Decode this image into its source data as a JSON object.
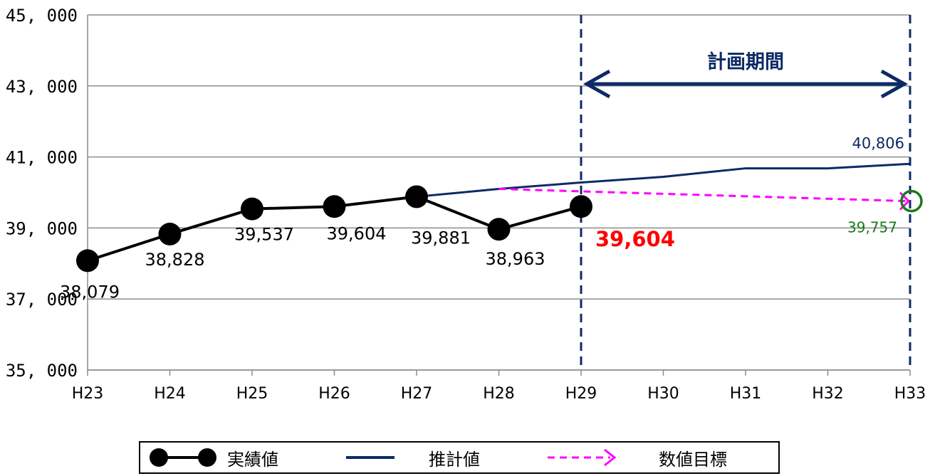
{
  "chart_data": {
    "type": "line",
    "categories": [
      "H23",
      "H24",
      "H25",
      "H26",
      "H27",
      "H28",
      "H29",
      "H30",
      "H31",
      "H32",
      "H33"
    ],
    "ylim": [
      35000,
      45000
    ],
    "yticks": [
      35000,
      37000,
      39000,
      41000,
      43000,
      45000
    ],
    "ytick_labels": [
      "35, 000",
      "37, 000",
      "39, 000",
      "41, 000",
      "43, 000",
      "45, 000"
    ],
    "grid": true,
    "series": [
      {
        "name": "実績値",
        "color": "#000000",
        "x": [
          "H23",
          "H24",
          "H25",
          "H26",
          "H27",
          "H28",
          "H29"
        ],
        "values": [
          38079,
          38828,
          39537,
          39604,
          39881,
          38963,
          39604
        ],
        "labels": [
          "38,079",
          "38,828",
          "39,537",
          "39,604",
          "39,881",
          "38,963",
          ""
        ]
      },
      {
        "name": "推計値",
        "color": "#0d2a66",
        "x": [
          "H27",
          "H28",
          "H29",
          "H30",
          "H31",
          "H32",
          "H33"
        ],
        "values": [
          39881,
          40100,
          40280,
          40440,
          40680,
          40680,
          40806
        ],
        "end_label": "40,806"
      },
      {
        "name": "数値目標",
        "color": "#ff00ff",
        "x": [
          "H28",
          "H33"
        ],
        "values": [
          40100,
          39757
        ],
        "end_label": "39,757",
        "end_label_color": "#1a7a1a"
      }
    ],
    "highlight": {
      "x": "H29",
      "text": "39,604",
      "color": "#ff0000"
    },
    "plan_period": {
      "label": "計画期間",
      "from": "H29",
      "to": "H33",
      "color": "#0d2a66"
    }
  },
  "legend": {
    "actual_label": "実績値",
    "estimate_label": "推計値",
    "target_label": "数値目標"
  }
}
